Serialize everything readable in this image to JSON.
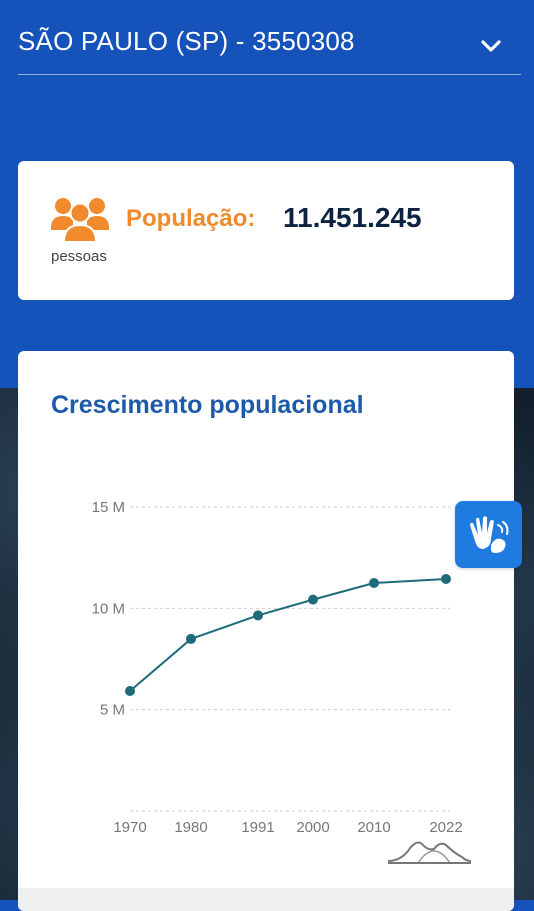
{
  "header": {
    "title": "SÃO PAULO (SP) - 3550308",
    "dropdown_icon": "chevron-down-icon"
  },
  "population": {
    "icon": "people-icon",
    "label": "População:",
    "value": "11.451.245",
    "unit": "pessoas",
    "accent_color": "#f08a2c"
  },
  "accessibility_button": {
    "icon": "sign-language-icon",
    "color": "#1f7be0"
  },
  "chart": {
    "title": "Crescimento populacional",
    "footer_icon": "distribution-curve-icon"
  },
  "chart_data": {
    "type": "line",
    "title": "Crescimento populacional",
    "x": [
      "1970",
      "1980",
      "1991",
      "2000",
      "2010",
      "2022"
    ],
    "values": [
      5.92,
      8.49,
      9.65,
      10.43,
      11.25,
      11.45
    ],
    "yticks": [
      {
        "value": 15,
        "label": "15 M"
      },
      {
        "value": 10,
        "label": "10 M"
      },
      {
        "value": 5,
        "label": "5 M"
      },
      {
        "value": 0,
        "label": ""
      }
    ],
    "ylim": [
      0,
      15
    ],
    "grid": true,
    "line_color": "#1f6b7c"
  }
}
